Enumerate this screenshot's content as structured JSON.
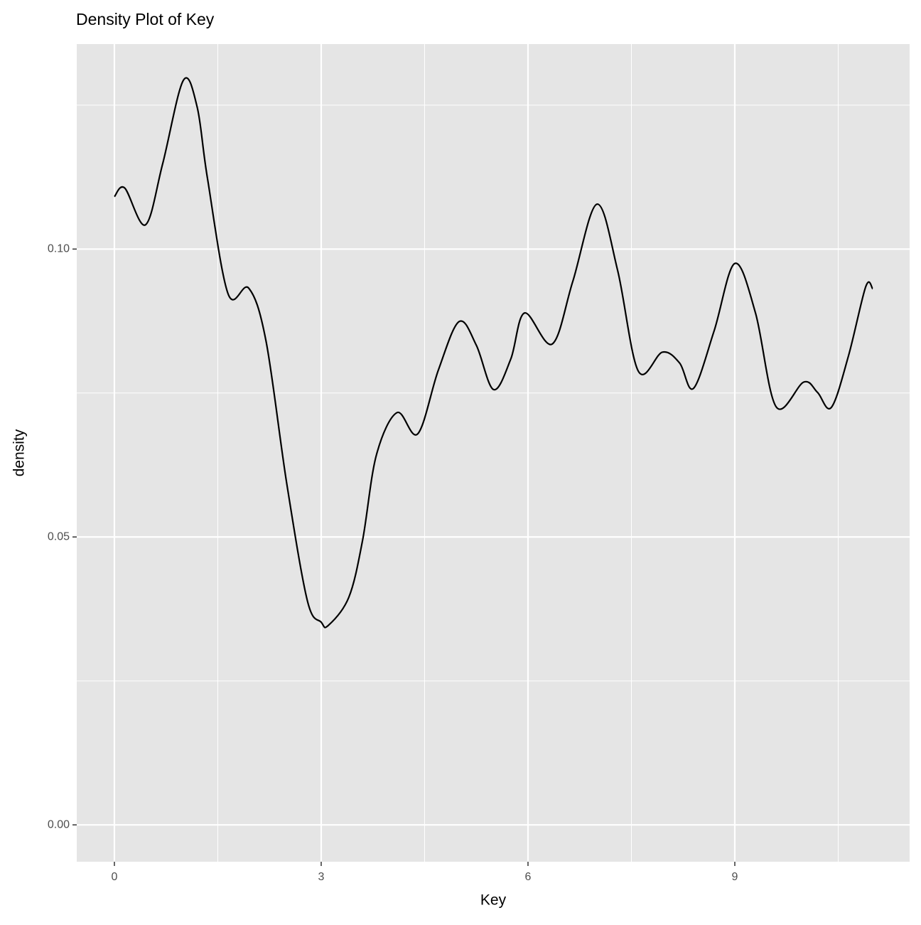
{
  "chart_data": {
    "type": "line",
    "title": "Density Plot of Key",
    "x_label": "Key",
    "y_label": "density",
    "x": [
      0,
      0.15,
      0.45,
      0.7,
      1.0,
      1.2,
      1.35,
      1.65,
      1.95,
      2.2,
      2.5,
      2.8,
      3.0,
      3.1,
      3.4,
      3.6,
      3.8,
      4.1,
      4.4,
      4.7,
      5.0,
      5.25,
      5.5,
      5.75,
      5.95,
      6.35,
      6.65,
      7.0,
      7.3,
      7.6,
      7.95,
      8.2,
      8.4,
      8.7,
      9.0,
      9.3,
      9.6,
      10.0,
      10.2,
      10.4,
      10.65,
      10.9,
      11.0
    ],
    "series": [
      {
        "color": "#000000",
        "values": [
          0.1091,
          0.1106,
          0.1042,
          0.1148,
          0.1293,
          0.1247,
          0.1123,
          0.0922,
          0.0932,
          0.084,
          0.0593,
          0.0389,
          0.0352,
          0.0346,
          0.0395,
          0.0494,
          0.0642,
          0.0716,
          0.0679,
          0.079,
          0.0874,
          0.0833,
          0.0756,
          0.0809,
          0.0889,
          0.0835,
          0.0944,
          0.1078,
          0.0963,
          0.0788,
          0.0821,
          0.0802,
          0.0758,
          0.0858,
          0.0975,
          0.0889,
          0.0726,
          0.0769,
          0.0751,
          0.0725,
          0.0815,
          0.0935,
          0.0931
        ]
      }
    ],
    "xlim": [
      -0.546,
      11.536
    ],
    "ylim": [
      -0.0064,
      0.1356
    ],
    "xticks": [
      0,
      3,
      6,
      9
    ],
    "yticks": [
      {
        "value": 0,
        "label": "0.00"
      },
      {
        "value": 0.05,
        "label": "0.05"
      },
      {
        "value": 0.1,
        "label": "0.10"
      }
    ],
    "grid": true,
    "background": "#e5e5e5"
  }
}
